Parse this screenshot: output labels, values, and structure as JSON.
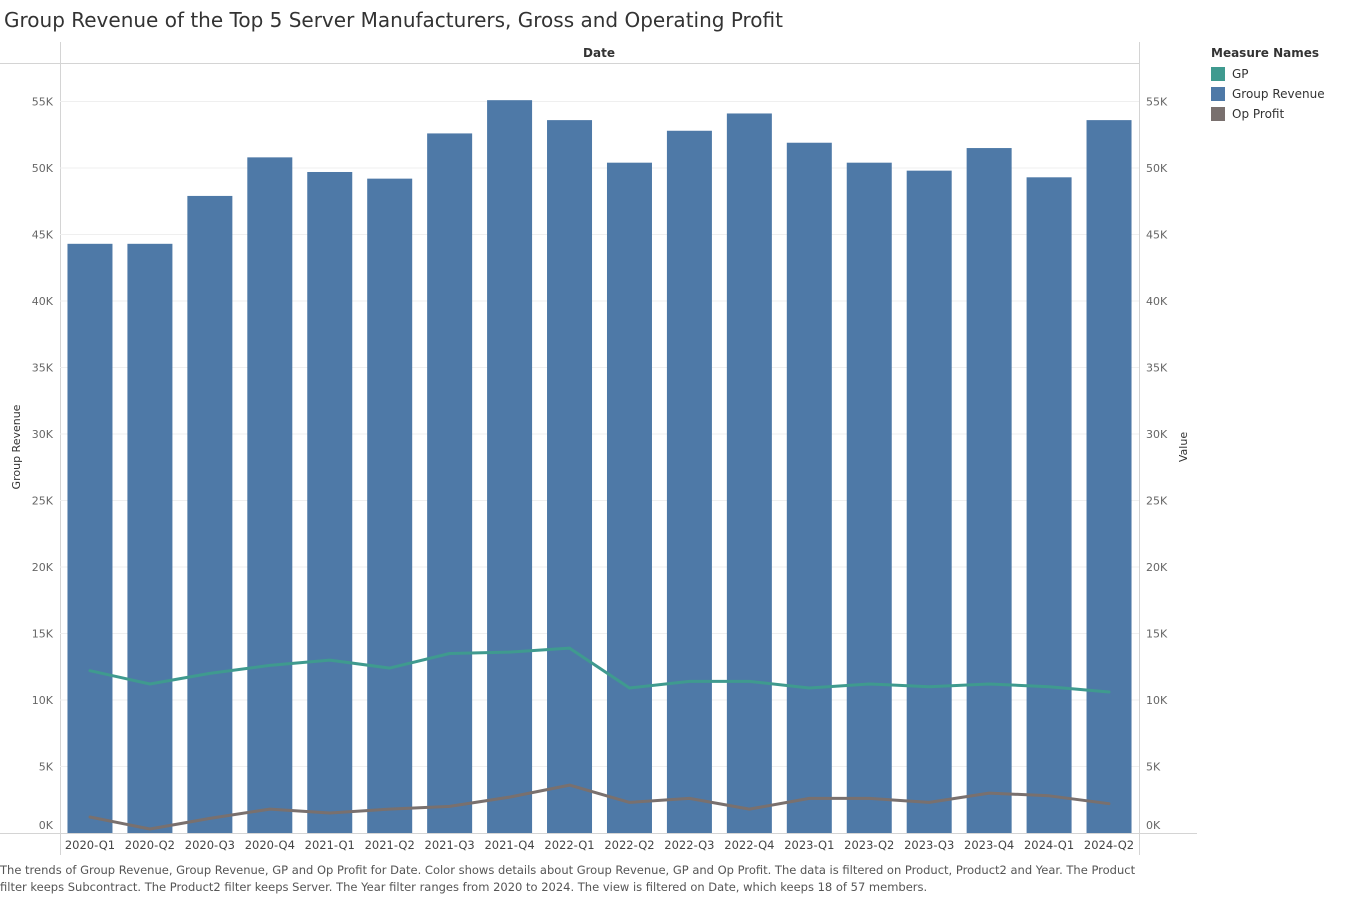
{
  "title": "Group Revenue of the Top 5 Server Manufacturers, Gross and Operating Profit",
  "caption": "The trends of Group Revenue, Group Revenue, GP and Op Profit for Date.  Color shows details about Group Revenue, GP and Op Profit. The data is filtered on Product, Product2 and Year. The Product filter keeps Subcontract. The Product2 filter keeps Server. The Year filter ranges from 2020 to 2024. The view is filtered on Date, which keeps 18 of 57 members.",
  "legend": {
    "title": "Measure Names",
    "items": [
      {
        "label": "GP",
        "color": "#3f9a8f"
      },
      {
        "label": "Group Revenue",
        "color": "#4e79a7"
      },
      {
        "label": "Op Profit",
        "color": "#79706e"
      }
    ]
  },
  "chart_data": {
    "type": "bar",
    "xlabel": "Date",
    "ylabel": "Group Revenue",
    "y2label": "Value",
    "ylim": [
      0,
      58000
    ],
    "y2lim": [
      0,
      58000
    ],
    "yticks": [
      "0K",
      "5K",
      "10K",
      "15K",
      "20K",
      "25K",
      "30K",
      "35K",
      "40K",
      "45K",
      "50K",
      "55K"
    ],
    "grid": true,
    "legend": "right",
    "categories": [
      "2020-Q1",
      "2020-Q2",
      "2020-Q3",
      "2020-Q4",
      "2021-Q1",
      "2021-Q2",
      "2021-Q3",
      "2021-Q4",
      "2022-Q1",
      "2022-Q2",
      "2022-Q3",
      "2022-Q4",
      "2023-Q1",
      "2023-Q2",
      "2023-Q3",
      "2023-Q4",
      "2024-Q1",
      "2024-Q2"
    ],
    "series": [
      {
        "name": "Group Revenue",
        "type": "bar",
        "color": "#4e79a7",
        "values": [
          44300,
          44300,
          47900,
          50800,
          49700,
          49200,
          52600,
          55100,
          53600,
          50400,
          52800,
          54100,
          51900,
          50400,
          49800,
          51500,
          49300,
          53600
        ]
      },
      {
        "name": "GP",
        "type": "line",
        "color": "#3f9a8f",
        "values": [
          12200,
          11200,
          12000,
          12600,
          13000,
          12400,
          13500,
          13600,
          13900,
          10900,
          11400,
          11400,
          10900,
          11200,
          11000,
          11200,
          11000,
          10600
        ]
      },
      {
        "name": "Op Profit",
        "type": "line",
        "color": "#79706e",
        "values": [
          1200,
          300,
          1100,
          1800,
          1500,
          1800,
          2000,
          2700,
          3600,
          2300,
          2600,
          1800,
          2600,
          2600,
          2300,
          3000,
          2800,
          2200
        ]
      }
    ]
  }
}
